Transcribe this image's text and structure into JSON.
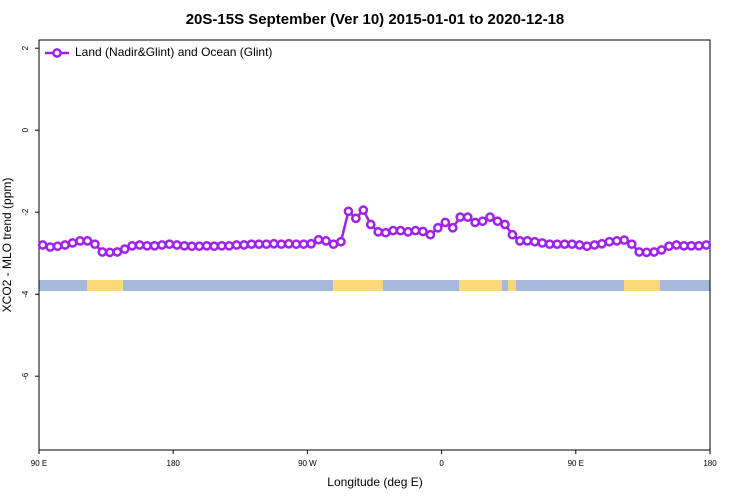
{
  "chart_data": {
    "type": "line",
    "title": "20S-15S September (Ver 10)   2015-01-01 to 2020-12-18",
    "x_label": "Longitude (deg E)",
    "y_label": "XCO2 - MLO trend (ppm)",
    "xlim": [
      90,
      540
    ],
    "xticks": [
      {
        "value": 90,
        "label": "90 E"
      },
      {
        "value": 180,
        "label": "180"
      },
      {
        "value": 270,
        "label": "90 W"
      },
      {
        "value": 360,
        "label": "0"
      },
      {
        "value": 450,
        "label": "90 E"
      },
      {
        "value": 540,
        "label": "180"
      }
    ],
    "ylim": [
      -7.8,
      2.2
    ],
    "yticks": [
      2,
      0,
      -2,
      -4,
      -6
    ],
    "legend": "top-left",
    "x": [
      92.5,
      97.5,
      102.5,
      107.5,
      112.5,
      117.5,
      122.5,
      127.5,
      132.5,
      137.5,
      142.5,
      147.5,
      152.5,
      157.5,
      162.5,
      167.5,
      172.5,
      177.5,
      182.5,
      187.5,
      192.5,
      197.5,
      202.5,
      207.5,
      212.5,
      217.5,
      222.5,
      227.5,
      232.5,
      237.5,
      242.5,
      247.5,
      252.5,
      257.5,
      262.5,
      267.5,
      272.5,
      277.5,
      282.5,
      287.5,
      292.5,
      297.5,
      302.5,
      307.5,
      312.5,
      317.5,
      322.5,
      327.5,
      332.5,
      337.5,
      342.5,
      347.5,
      352.5,
      357.5,
      362.5,
      367.5,
      372.5,
      377.5,
      382.5,
      387.5,
      392.5,
      397.5,
      402.5,
      407.5,
      412.5,
      417.5,
      422.5,
      427.5,
      432.5,
      437.5,
      442.5,
      447.5,
      452.5,
      457.5,
      462.5,
      467.5,
      472.5,
      477.5,
      482.5,
      487.5,
      492.5,
      497.5,
      502.5,
      507.5,
      512.5,
      517.5,
      522.5,
      527.5,
      532.5,
      537.5
    ],
    "series": [
      {
        "name": "Land (Nadir&Glint) and Ocean (Glint)",
        "color": "#a020f0",
        "values": [
          -2.8,
          -2.85,
          -2.83,
          -2.8,
          -2.75,
          -2.7,
          -2.7,
          -2.78,
          -2.97,
          -2.98,
          -2.97,
          -2.9,
          -2.82,
          -2.8,
          -2.82,
          -2.82,
          -2.8,
          -2.78,
          -2.8,
          -2.82,
          -2.83,
          -2.83,
          -2.82,
          -2.83,
          -2.82,
          -2.82,
          -2.8,
          -2.8,
          -2.78,
          -2.78,
          -2.78,
          -2.77,
          -2.78,
          -2.77,
          -2.78,
          -2.78,
          -2.77,
          -2.67,
          -2.7,
          -2.78,
          -2.72,
          -1.98,
          -2.15,
          -1.95,
          -2.3,
          -2.48,
          -2.5,
          -2.45,
          -2.45,
          -2.48,
          -2.45,
          -2.47,
          -2.55,
          -2.38,
          -2.25,
          -2.38,
          -2.12,
          -2.12,
          -2.25,
          -2.22,
          -2.12,
          -2.22,
          -2.3,
          -2.55,
          -2.7,
          -2.7,
          -2.72,
          -2.75,
          -2.78,
          -2.78,
          -2.78,
          -2.78,
          -2.8,
          -2.83,
          -2.8,
          -2.77,
          -2.72,
          -2.7,
          -2.68,
          -2.78,
          -2.97,
          -2.98,
          -2.97,
          -2.92,
          -2.83,
          -2.8,
          -2.82,
          -2.82,
          -2.82,
          -2.8
        ]
      }
    ]
  }
}
